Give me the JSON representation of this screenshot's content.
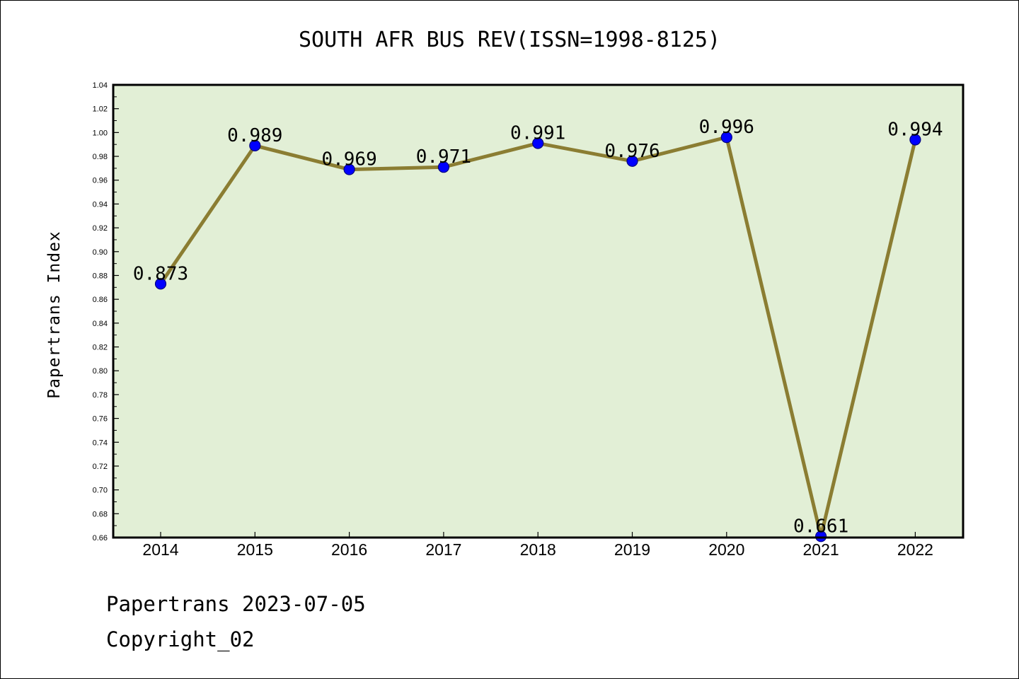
{
  "chart_data": {
    "type": "line",
    "title": "SOUTH AFR BUS REV(ISSN=1998-8125)",
    "xlabel": "",
    "ylabel": "Papertrans Index",
    "categories": [
      "2014",
      "2015",
      "2016",
      "2017",
      "2018",
      "2019",
      "2020",
      "2021",
      "2022"
    ],
    "values": [
      0.873,
      0.989,
      0.969,
      0.971,
      0.991,
      0.976,
      0.996,
      0.661,
      0.994
    ],
    "data_labels": [
      "0.873",
      "0.989",
      "0.969",
      "0.971",
      "0.991",
      "0.976",
      "0.996",
      "0.661",
      "0.994"
    ],
    "ylim": [
      0.66,
      1.04
    ],
    "yticks": [
      "0.66",
      "0.68",
      "0.70",
      "0.72",
      "0.74",
      "0.76",
      "0.78",
      "0.80",
      "0.82",
      "0.84",
      "0.86",
      "0.88",
      "0.90",
      "0.92",
      "0.94",
      "0.96",
      "0.98",
      "1.00",
      "1.02",
      "1.04"
    ],
    "grid": false,
    "legend": "none"
  },
  "colors": {
    "plot_background": "#e2efd6",
    "line": "#8b7d32",
    "marker_fill": "#0000ff",
    "marker_edge": "#000080"
  },
  "footer": {
    "line1": "Papertrans 2023-07-05",
    "line2": "Copyright_02"
  }
}
